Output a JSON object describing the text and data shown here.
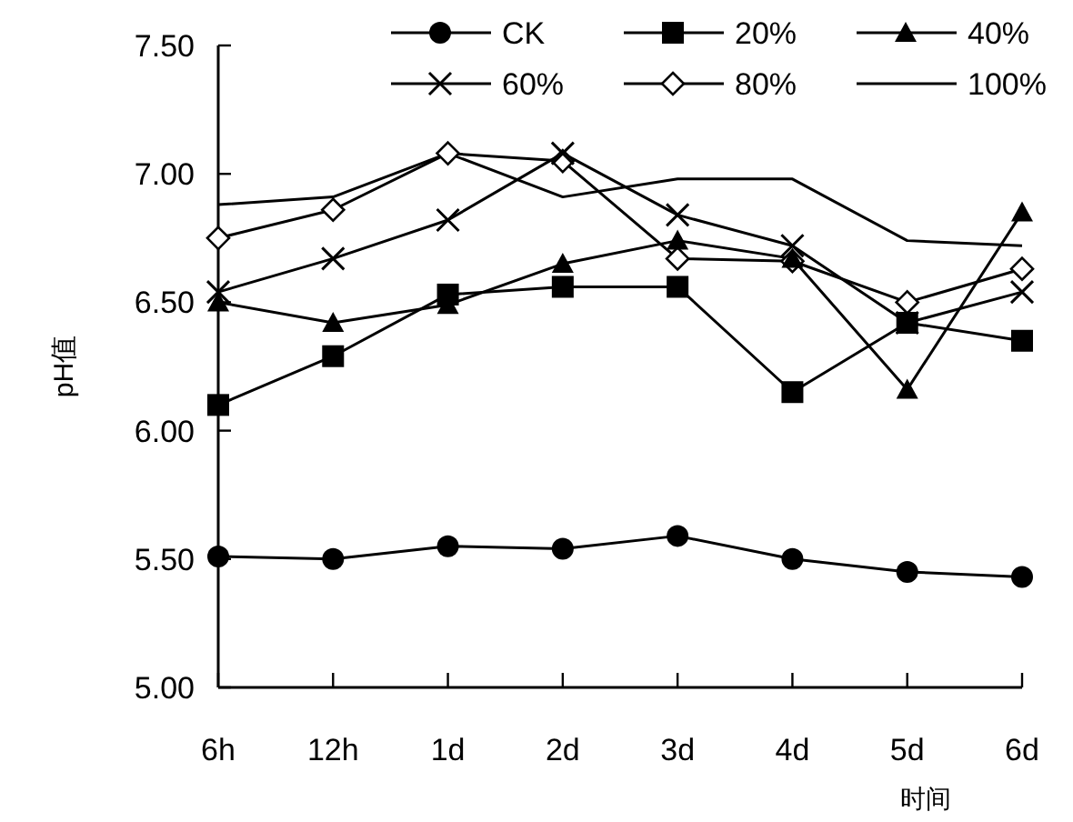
{
  "chart_data": {
    "type": "line",
    "xlabel": "时间",
    "ylabel": "pH值",
    "categories": [
      "6h",
      "12h",
      "1d",
      "2d",
      "3d",
      "4d",
      "5d",
      "6d"
    ],
    "series": [
      {
        "name": "CK",
        "color": "#000000",
        "marker": "circle",
        "values": [
          5.51,
          5.5,
          5.55,
          5.54,
          5.59,
          5.5,
          5.45,
          5.43
        ]
      },
      {
        "name": "20%",
        "color": "#000000",
        "marker": "square",
        "values": [
          6.1,
          6.29,
          6.53,
          6.56,
          6.56,
          6.15,
          6.42,
          6.35
        ]
      },
      {
        "name": "40%",
        "color": "#000000",
        "marker": "triangle",
        "values": [
          6.5,
          6.42,
          6.49,
          6.65,
          6.74,
          6.67,
          6.16,
          6.85
        ]
      },
      {
        "name": "60%",
        "color": "#000000",
        "marker": "cross",
        "values": [
          6.54,
          6.67,
          6.82,
          7.08,
          6.84,
          6.72,
          6.42,
          6.54
        ]
      },
      {
        "name": "80%",
        "color": "#000000",
        "marker": "diamond",
        "values": [
          6.75,
          6.86,
          7.08,
          7.05,
          6.67,
          6.66,
          6.5,
          6.63
        ]
      },
      {
        "name": "100%",
        "color": "#000000",
        "marker": "none",
        "values": [
          6.88,
          6.91,
          7.08,
          6.91,
          6.98,
          6.98,
          6.74,
          6.72
        ]
      }
    ],
    "ylim": [
      5,
      7.5
    ],
    "yticks": [
      {
        "value": 5,
        "label": "5.00"
      },
      {
        "value": 5.5,
        "label": "5.50"
      },
      {
        "value": 6,
        "label": "6.00"
      },
      {
        "value": 6.5,
        "label": "6.50"
      },
      {
        "value": 7,
        "label": "7.00"
      },
      {
        "value": 7.5,
        "label": "7.50"
      }
    ],
    "grid": false,
    "legend": "top",
    "line_style": "solid"
  }
}
